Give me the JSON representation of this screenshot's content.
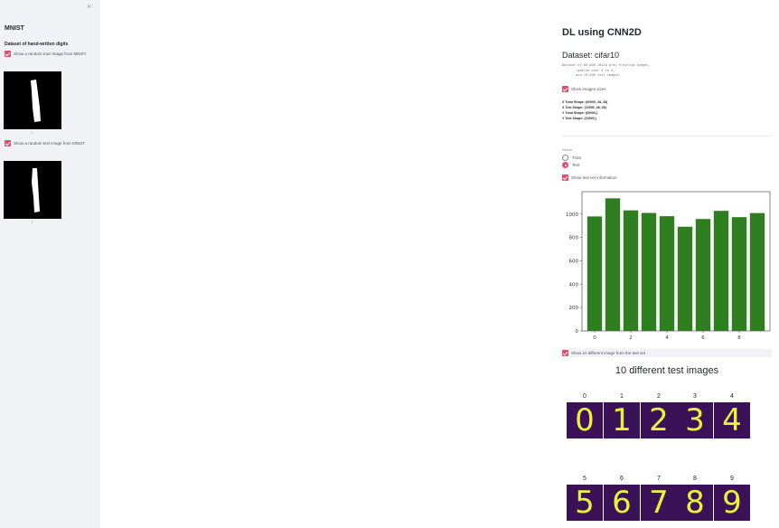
{
  "sidebar": {
    "close_icon": "×",
    "title": "MNIST",
    "subtitle": "Dataset of hand-written digits",
    "train_checkbox": "Show a random train image from MNIST",
    "train_caption": "1",
    "test_checkbox": "Show a random test image from MNIST",
    "test_caption": "1"
  },
  "main": {
    "title": "DL using CNN2D",
    "dataset_heading": "Dataset: cifar10",
    "dataset_desc": "Dataset of 60,000 28x28 grey training images,\n       labeled over 0 to 9,\n       and 10,000 test images.",
    "show_sizes_label": "Show images sizes",
    "shapes": [
      "X Train Shape: (60000, 28, 28)",
      "X Test Shape: (10000, 28, 28)",
      "Y Train Shape: (60000,)",
      "Y Test Shape: (10000,)"
    ],
    "radio_label": "Select",
    "radio_options": [
      "Train",
      "Test"
    ],
    "radio_selected": "Test",
    "show_test_info_label": "Show test set information",
    "show_10_label": "Show 10 different image from the test set",
    "ten_title": "10 different test images",
    "tile_labels": [
      "0",
      "1",
      "2",
      "3",
      "4",
      "5",
      "6",
      "7",
      "8",
      "9"
    ]
  },
  "colors": {
    "accent": "#e04e6d",
    "bar": "#2e7d1f",
    "tile_bg": "#3b1258",
    "digit": "#e8f23a"
  },
  "chart_data": {
    "type": "bar",
    "categories": [
      "0",
      "1",
      "2",
      "3",
      "4",
      "5",
      "6",
      "7",
      "8",
      "9"
    ],
    "values": [
      980,
      1135,
      1032,
      1010,
      982,
      892,
      958,
      1028,
      974,
      1009
    ],
    "yticks": [
      0,
      200,
      400,
      600,
      800,
      1000
    ],
    "xticks": [
      0,
      2,
      4,
      6,
      8
    ],
    "ylim": [
      0,
      1192
    ]
  }
}
